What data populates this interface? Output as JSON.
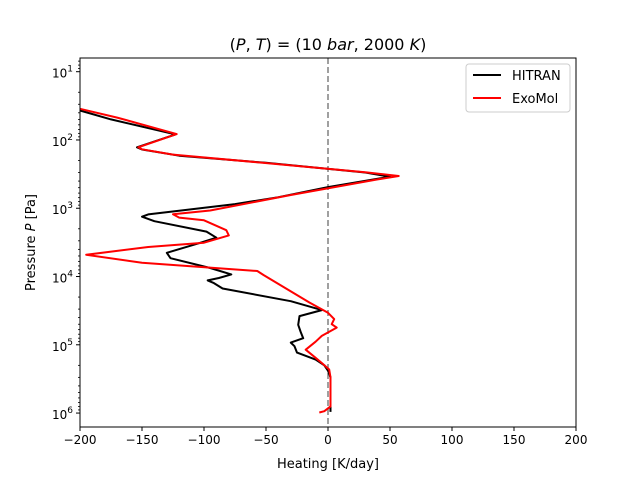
{
  "chart_data": {
    "type": "line",
    "title": "(P, T) = (10 bar, 2000 K)",
    "title_parts": {
      "open": "(",
      "p": "P",
      "comma": ", ",
      "t": "T",
      "eq": ") = (10 ",
      "bar": "bar",
      "mid": ", 2000 ",
      "k": "K",
      "close": ")"
    },
    "xlabel": "Heating [K/day]",
    "ylabel_prefix": "Pressure ",
    "ylabel_var": "P",
    "ylabel_suffix": " [Pa]",
    "xlim": [
      -200,
      200
    ],
    "ylim_pa": [
      1600000,
      6.3
    ],
    "y_scale": "log",
    "y_inverted": true,
    "x_ticks": [
      -200,
      -150,
      -100,
      -50,
      0,
      50,
      100,
      150,
      200
    ],
    "x_tick_labels": [
      "−200",
      "−150",
      "−100",
      "−50",
      "0",
      "50",
      "100",
      "150",
      "200"
    ],
    "y_ticks_pa": [
      10,
      100,
      1000,
      10000,
      100000,
      1000000
    ],
    "y_tick_base": "10",
    "y_tick_exponents": [
      "1",
      "2",
      "3",
      "4",
      "5",
      "6"
    ],
    "reference_line": {
      "x": 0,
      "style": "dashed",
      "color": "#808080"
    },
    "legend_position": "top-right",
    "grid": false,
    "series": [
      {
        "name": "HITRAN",
        "color": "#000000",
        "points": [
          [
            -200,
            37
          ],
          [
            -175,
            50
          ],
          [
            -123,
            83
          ],
          [
            -154,
            128
          ],
          [
            -150,
            138
          ],
          [
            -120,
            170
          ],
          [
            -50,
            216
          ],
          [
            30,
            300
          ],
          [
            50,
            345
          ],
          [
            0,
            490
          ],
          [
            -40,
            690
          ],
          [
            -75,
            870
          ],
          [
            -115,
            1060
          ],
          [
            -145,
            1230
          ],
          [
            -150,
            1330
          ],
          [
            -140,
            1550
          ],
          [
            -98,
            2200
          ],
          [
            -90,
            2700
          ],
          [
            -105,
            3300
          ],
          [
            -130,
            4500
          ],
          [
            -127,
            5400
          ],
          [
            -95,
            7500
          ],
          [
            -78,
            9300
          ],
          [
            -88,
            10500
          ],
          [
            -97,
            11400
          ],
          [
            -92,
            12500
          ],
          [
            -85,
            15000
          ],
          [
            -30,
            23000
          ],
          [
            -5,
            31000
          ],
          [
            -23,
            38000
          ],
          [
            -24,
            51000
          ],
          [
            -22,
            65000
          ],
          [
            -20,
            80000
          ],
          [
            -30,
            93000
          ],
          [
            -27,
            105000
          ],
          [
            -25,
            130000
          ],
          [
            -10,
            165000
          ],
          [
            -3,
            200000
          ],
          [
            0,
            240000
          ],
          [
            2,
            300000
          ],
          [
            2,
            500000
          ],
          [
            2,
            800000
          ],
          [
            2,
            960000
          ]
        ]
      },
      {
        "name": "ExoMol",
        "color": "#ff0000",
        "points": [
          [
            -200,
            35
          ],
          [
            -170,
            47
          ],
          [
            -122,
            82
          ],
          [
            -153,
            128
          ],
          [
            -150,
            137
          ],
          [
            -125,
            164
          ],
          [
            -55,
            214
          ],
          [
            30,
            297
          ],
          [
            57,
            337
          ],
          [
            40,
            378
          ],
          [
            -30,
            640
          ],
          [
            -95,
            1080
          ],
          [
            -125,
            1225
          ],
          [
            -120,
            1370
          ],
          [
            -100,
            1500
          ],
          [
            -82,
            2100
          ],
          [
            -80,
            2500
          ],
          [
            -100,
            3200
          ],
          [
            -145,
            3700
          ],
          [
            -195,
            4800
          ],
          [
            -150,
            6300
          ],
          [
            -57,
            8300
          ],
          [
            -52,
            9500
          ],
          [
            -15,
            24000
          ],
          [
            0,
            34000
          ],
          [
            5,
            42000
          ],
          [
            3,
            50000
          ],
          [
            7,
            56000
          ],
          [
            -5,
            74000
          ],
          [
            -10,
            90000
          ],
          [
            -18,
            118000
          ],
          [
            -10,
            155000
          ],
          [
            -5,
            185000
          ],
          [
            1,
            230000
          ],
          [
            2,
            300000
          ],
          [
            2,
            500000
          ],
          [
            2,
            800000
          ],
          [
            -3,
            940000
          ],
          [
            -7,
            980000
          ]
        ]
      }
    ]
  }
}
